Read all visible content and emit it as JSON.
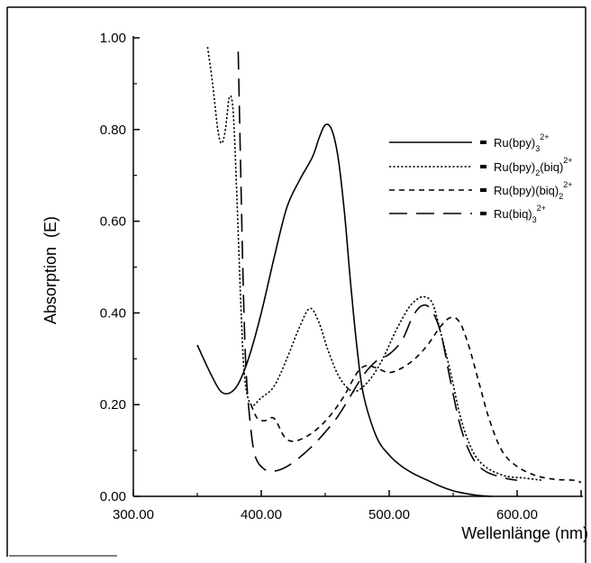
{
  "chart_data": {
    "type": "line",
    "xlabel": "Wellenlänge (nm)",
    "ylabel": "Absorption  (E)",
    "xlim": [
      300,
      650
    ],
    "ylim": [
      0,
      1.0
    ],
    "x_ticks": [
      300,
      400,
      500,
      600
    ],
    "x_tick_labels": [
      "300.00",
      "400.00",
      "500.00",
      "600.00"
    ],
    "y_ticks": [
      0,
      0.2,
      0.4,
      0.6,
      0.8,
      1.0
    ],
    "y_tick_labels": [
      "0.00",
      "0.20",
      "0.40",
      "0.60",
      "0.80",
      "1.00"
    ],
    "grid": false,
    "legend_position": "top-right",
    "series": [
      {
        "name": "Ru(bpy)3 2+",
        "legend": {
          "base": "Ru(bpy)",
          "sub": "3",
          "sup": "2+"
        },
        "line_style": "solid",
        "points": [
          [
            350,
            0.33
          ],
          [
            360,
            0.27
          ],
          [
            368,
            0.23
          ],
          [
            375,
            0.225
          ],
          [
            382,
            0.245
          ],
          [
            390,
            0.3
          ],
          [
            400,
            0.4
          ],
          [
            410,
            0.52
          ],
          [
            420,
            0.63
          ],
          [
            430,
            0.69
          ],
          [
            440,
            0.74
          ],
          [
            445,
            0.78
          ],
          [
            450,
            0.81
          ],
          [
            455,
            0.8
          ],
          [
            460,
            0.74
          ],
          [
            465,
            0.62
          ],
          [
            470,
            0.46
          ],
          [
            475,
            0.32
          ],
          [
            480,
            0.22
          ],
          [
            490,
            0.13
          ],
          [
            500,
            0.09
          ],
          [
            510,
            0.065
          ],
          [
            520,
            0.048
          ],
          [
            530,
            0.035
          ],
          [
            540,
            0.022
          ],
          [
            550,
            0.012
          ],
          [
            560,
            0.006
          ],
          [
            570,
            0.002
          ],
          [
            580,
            0.0
          ]
        ]
      },
      {
        "name": "Ru(bpy)2(biq) 2+",
        "legend": {
          "base": "Ru(bpy)",
          "sub": "2",
          "mid": "(biq)",
          "sup": "2+"
        },
        "line_style": "dotted",
        "points": [
          [
            358,
            0.98
          ],
          [
            362,
            0.9
          ],
          [
            366,
            0.8
          ],
          [
            369,
            0.77
          ],
          [
            372,
            0.8
          ],
          [
            375,
            0.87
          ],
          [
            378,
            0.84
          ],
          [
            381,
            0.65
          ],
          [
            384,
            0.42
          ],
          [
            387,
            0.26
          ],
          [
            392,
            0.2
          ],
          [
            400,
            0.215
          ],
          [
            410,
            0.24
          ],
          [
            420,
            0.3
          ],
          [
            430,
            0.37
          ],
          [
            438,
            0.41
          ],
          [
            445,
            0.38
          ],
          [
            452,
            0.32
          ],
          [
            460,
            0.265
          ],
          [
            468,
            0.235
          ],
          [
            475,
            0.23
          ],
          [
            485,
            0.255
          ],
          [
            495,
            0.3
          ],
          [
            505,
            0.36
          ],
          [
            515,
            0.41
          ],
          [
            522,
            0.43
          ],
          [
            528,
            0.435
          ],
          [
            534,
            0.42
          ],
          [
            540,
            0.36
          ],
          [
            548,
            0.27
          ],
          [
            556,
            0.17
          ],
          [
            565,
            0.1
          ],
          [
            575,
            0.065
          ],
          [
            590,
            0.045
          ],
          [
            605,
            0.04
          ],
          [
            620,
            0.035
          ]
        ]
      },
      {
        "name": "Ru(bpy)(biq)2 2+",
        "legend": {
          "base": "Ru(bpy)(biq)",
          "sub": "2",
          "sup": "2+"
        },
        "line_style": "dashed",
        "points": [
          [
            392,
            0.2
          ],
          [
            397,
            0.17
          ],
          [
            403,
            0.165
          ],
          [
            410,
            0.17
          ],
          [
            418,
            0.13
          ],
          [
            425,
            0.12
          ],
          [
            435,
            0.13
          ],
          [
            445,
            0.15
          ],
          [
            455,
            0.18
          ],
          [
            465,
            0.22
          ],
          [
            475,
            0.27
          ],
          [
            482,
            0.285
          ],
          [
            490,
            0.28
          ],
          [
            500,
            0.27
          ],
          [
            510,
            0.28
          ],
          [
            520,
            0.3
          ],
          [
            530,
            0.33
          ],
          [
            540,
            0.37
          ],
          [
            548,
            0.39
          ],
          [
            555,
            0.38
          ],
          [
            562,
            0.33
          ],
          [
            570,
            0.25
          ],
          [
            578,
            0.17
          ],
          [
            588,
            0.1
          ],
          [
            600,
            0.065
          ],
          [
            615,
            0.045
          ],
          [
            630,
            0.037
          ],
          [
            645,
            0.035
          ],
          [
            650,
            0.03
          ]
        ]
      },
      {
        "name": "Ru(biq)3 2+",
        "legend": {
          "base": "Ru(biq)",
          "sub": "3",
          "sup": "2+"
        },
        "line_style": "longdash",
        "points": [
          [
            382,
            0.97
          ],
          [
            384,
            0.7
          ],
          [
            386,
            0.45
          ],
          [
            388,
            0.28
          ],
          [
            391,
            0.17
          ],
          [
            395,
            0.09
          ],
          [
            402,
            0.06
          ],
          [
            410,
            0.055
          ],
          [
            420,
            0.065
          ],
          [
            430,
            0.085
          ],
          [
            440,
            0.11
          ],
          [
            450,
            0.14
          ],
          [
            460,
            0.175
          ],
          [
            470,
            0.22
          ],
          [
            480,
            0.265
          ],
          [
            490,
            0.295
          ],
          [
            500,
            0.31
          ],
          [
            510,
            0.34
          ],
          [
            518,
            0.39
          ],
          [
            525,
            0.415
          ],
          [
            532,
            0.41
          ],
          [
            540,
            0.36
          ],
          [
            548,
            0.25
          ],
          [
            556,
            0.15
          ],
          [
            565,
            0.085
          ],
          [
            575,
            0.055
          ],
          [
            590,
            0.04
          ],
          [
            600,
            0.035
          ]
        ]
      }
    ]
  }
}
